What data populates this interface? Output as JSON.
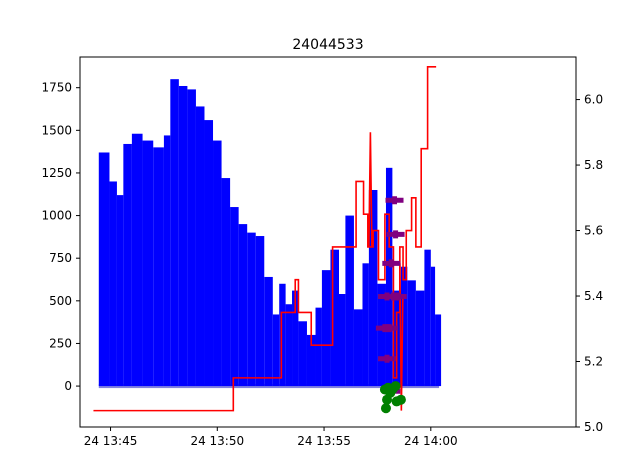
{
  "chart_data": {
    "type": "line",
    "title": "24044533",
    "xlabel": "",
    "ylabel": "",
    "grid": false,
    "x_range_minutes": [
      -1.43,
      21.8
    ],
    "ylim_left": [
      -240,
      1930
    ],
    "ylim_right": [
      5.0,
      6.13
    ],
    "x_ticks": [
      {
        "minute": 0,
        "label": "24 13:45"
      },
      {
        "minute": 5,
        "label": "24 13:50"
      },
      {
        "minute": 10,
        "label": "24 13:55"
      },
      {
        "minute": 15,
        "label": "24 14:00"
      }
    ],
    "y_ticks_left": [
      0,
      250,
      500,
      750,
      1000,
      1250,
      1500,
      1750
    ],
    "y_ticks_left_labels": [
      "0",
      "250",
      "500",
      "750",
      "1000",
      "1250",
      "1500",
      "1750"
    ],
    "y_ticks_right": [
      5.0,
      5.2,
      5.4,
      5.6,
      5.8,
      6.0
    ],
    "y_ticks_right_labels": [
      "5.0",
      "5.2",
      "5.4",
      "5.6",
      "5.8",
      "6.0"
    ],
    "x_minutes_note": "x values are minutes after 24 13:45",
    "series": [
      {
        "axis": "left",
        "kind": "bars",
        "color": "#0000ff",
        "x": [
          -0.55,
          -0.05,
          0.3,
          0.6,
          1.0,
          1.5,
          2.0,
          2.5,
          2.8,
          3.2,
          3.6,
          4.0,
          4.4,
          4.8,
          5.2,
          5.6,
          6.0,
          6.4,
          6.8,
          7.2,
          7.6,
          7.9,
          8.2,
          8.5,
          8.8,
          9.2,
          9.6,
          9.9,
          10.3,
          10.7,
          11.0,
          11.4,
          11.8,
          12.1,
          12.5,
          12.9,
          13.2,
          13.6,
          13.9,
          14.3,
          14.7,
          15.0,
          15.2
        ],
        "values": [
          1370,
          1200,
          1120,
          1420,
          1480,
          1440,
          1400,
          1470,
          1800,
          1760,
          1740,
          1640,
          1560,
          1440,
          1220,
          1050,
          950,
          900,
          880,
          640,
          420,
          600,
          480,
          560,
          380,
          300,
          460,
          680,
          800,
          540,
          1000,
          450,
          720,
          1150,
          600,
          1280,
          560,
          700,
          620,
          560,
          800,
          700,
          420
        ],
        "baseline_color": "#8080e0"
      },
      {
        "axis": "right",
        "kind": "step",
        "color": "#ff0000",
        "x": [
          -0.8,
          5.75,
          8.0,
          8.65,
          8.8,
          9.4,
          10.4,
          11.5,
          11.85,
          12.05,
          12.3,
          12.55,
          12.85,
          13.05,
          13.25,
          13.4,
          13.55,
          13.7,
          13.85,
          14.1,
          14.3,
          14.55,
          14.85,
          15.25
        ],
        "values": [
          5.05,
          5.15,
          5.35,
          5.45,
          5.35,
          5.25,
          5.55,
          5.75,
          5.65,
          5.55,
          5.6,
          5.45,
          5.65,
          5.55,
          5.15,
          5.35,
          5.55,
          5.45,
          5.6,
          5.7,
          5.55,
          5.85,
          6.1,
          6.1
        ],
        "spikes": [
          {
            "x": 12.1,
            "values": [
              5.55,
              5.9,
              5.55
            ]
          },
          {
            "x": 13.55,
            "values": [
              5.5,
              5.05,
              5.4
            ]
          }
        ]
      },
      {
        "axis": "left",
        "kind": "markers",
        "color": "#800080",
        "marker": "plus",
        "points": [
          [
            12.95,
            160
          ],
          [
            12.85,
            340
          ],
          [
            13.05,
            340
          ],
          [
            12.95,
            525
          ],
          [
            13.25,
            525
          ],
          [
            13.45,
            525
          ],
          [
            13.15,
            720
          ],
          [
            13.35,
            890
          ],
          [
            13.3,
            1090
          ],
          [
            13.15,
            -30
          ]
        ]
      },
      {
        "axis": "left",
        "kind": "markers",
        "color": "#008000",
        "marker": "circle",
        "points": [
          [
            12.85,
            -20
          ],
          [
            13.0,
            -10
          ],
          [
            13.1,
            -40
          ],
          [
            13.2,
            -20
          ],
          [
            13.35,
            0
          ],
          [
            12.95,
            -80
          ],
          [
            12.9,
            -130
          ],
          [
            13.4,
            -90
          ],
          [
            13.6,
            -80
          ]
        ]
      }
    ]
  }
}
